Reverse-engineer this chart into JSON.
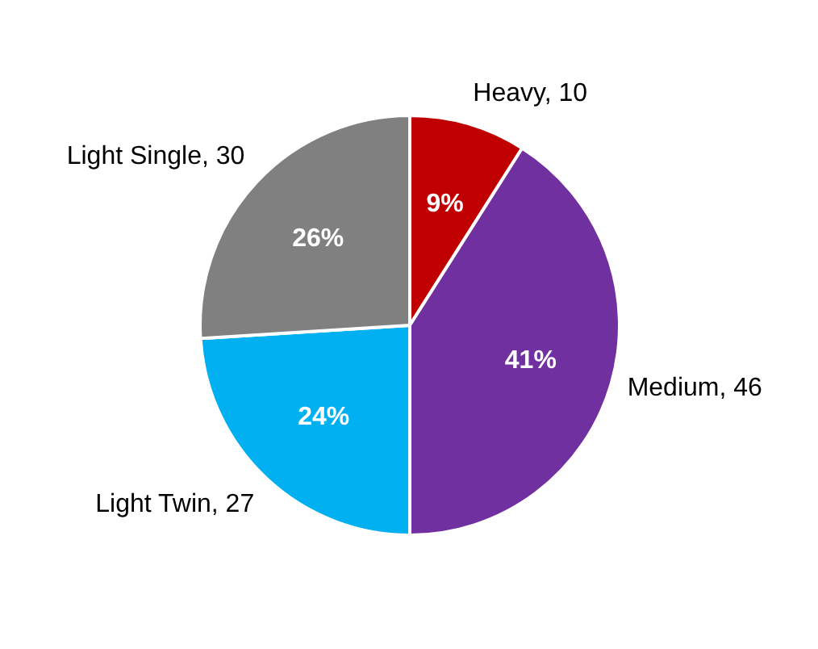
{
  "chart_data": {
    "type": "pie",
    "categories": [
      "Heavy, 10",
      "Medium, 46",
      "Light Twin, 27",
      "Light Single, 30"
    ],
    "values": [
      9,
      41,
      24,
      26
    ],
    "colors": [
      "#c00000",
      "#7030a0",
      "#00b0f0",
      "#808080"
    ],
    "value_labels": [
      "9%",
      "41%",
      "24%",
      "26%"
    ],
    "data_labels": true,
    "legend": false
  }
}
